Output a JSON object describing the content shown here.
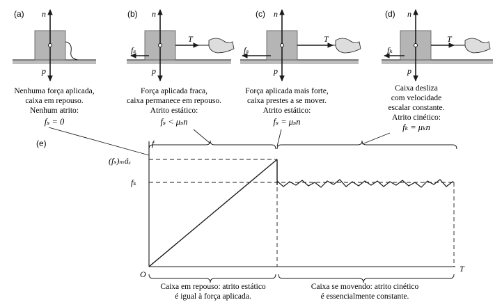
{
  "panels": [
    {
      "id": "a",
      "label": "(a)",
      "caption": [
        "Nenhuma força aplicada,",
        "caixa em repouso.",
        "Nenhum atrito:"
      ],
      "formula": "fₛ = 0"
    },
    {
      "id": "b",
      "label": "(b)",
      "caption": [
        "Força aplicada fraca,",
        "caixa permanece em repouso.",
        "Atrito estático:"
      ],
      "formula": "fₛ < μₛn"
    },
    {
      "id": "c",
      "label": "(c)",
      "caption": [
        "Força aplicada mais forte,",
        "caixa prestes a se mover.",
        "Atrito estático:"
      ],
      "formula": "fₛ = μₛn"
    },
    {
      "id": "d",
      "label": "(d)",
      "caption": [
        "Caixa desliza",
        "com velocidade",
        "escalar constante.",
        "Atrito cinético:"
      ],
      "formula": "fₖ = μₖn"
    }
  ],
  "vectors": {
    "normal": "n",
    "weight": "p",
    "applied": "T",
    "static_friction": "fₛ",
    "kinetic_friction": "fₖ"
  },
  "graph": {
    "panel_label": "(e)",
    "y_axis_label": "f",
    "x_axis_label": "T",
    "origin_label": "O",
    "fs_max_label": "(fₛ)ₘáₓ",
    "fk_label": "fₖ",
    "rest_caption": [
      "Caixa em repouso: atrito estático",
      "é igual à força aplicada."
    ],
    "moving_caption": [
      "Caixa se movendo: atrito cinético",
      "é essencialmente constante."
    ]
  },
  "colors": {
    "ink": "#1a1a1a",
    "box_fill": "#b5b5b5",
    "ground": "#bdbdbd"
  }
}
